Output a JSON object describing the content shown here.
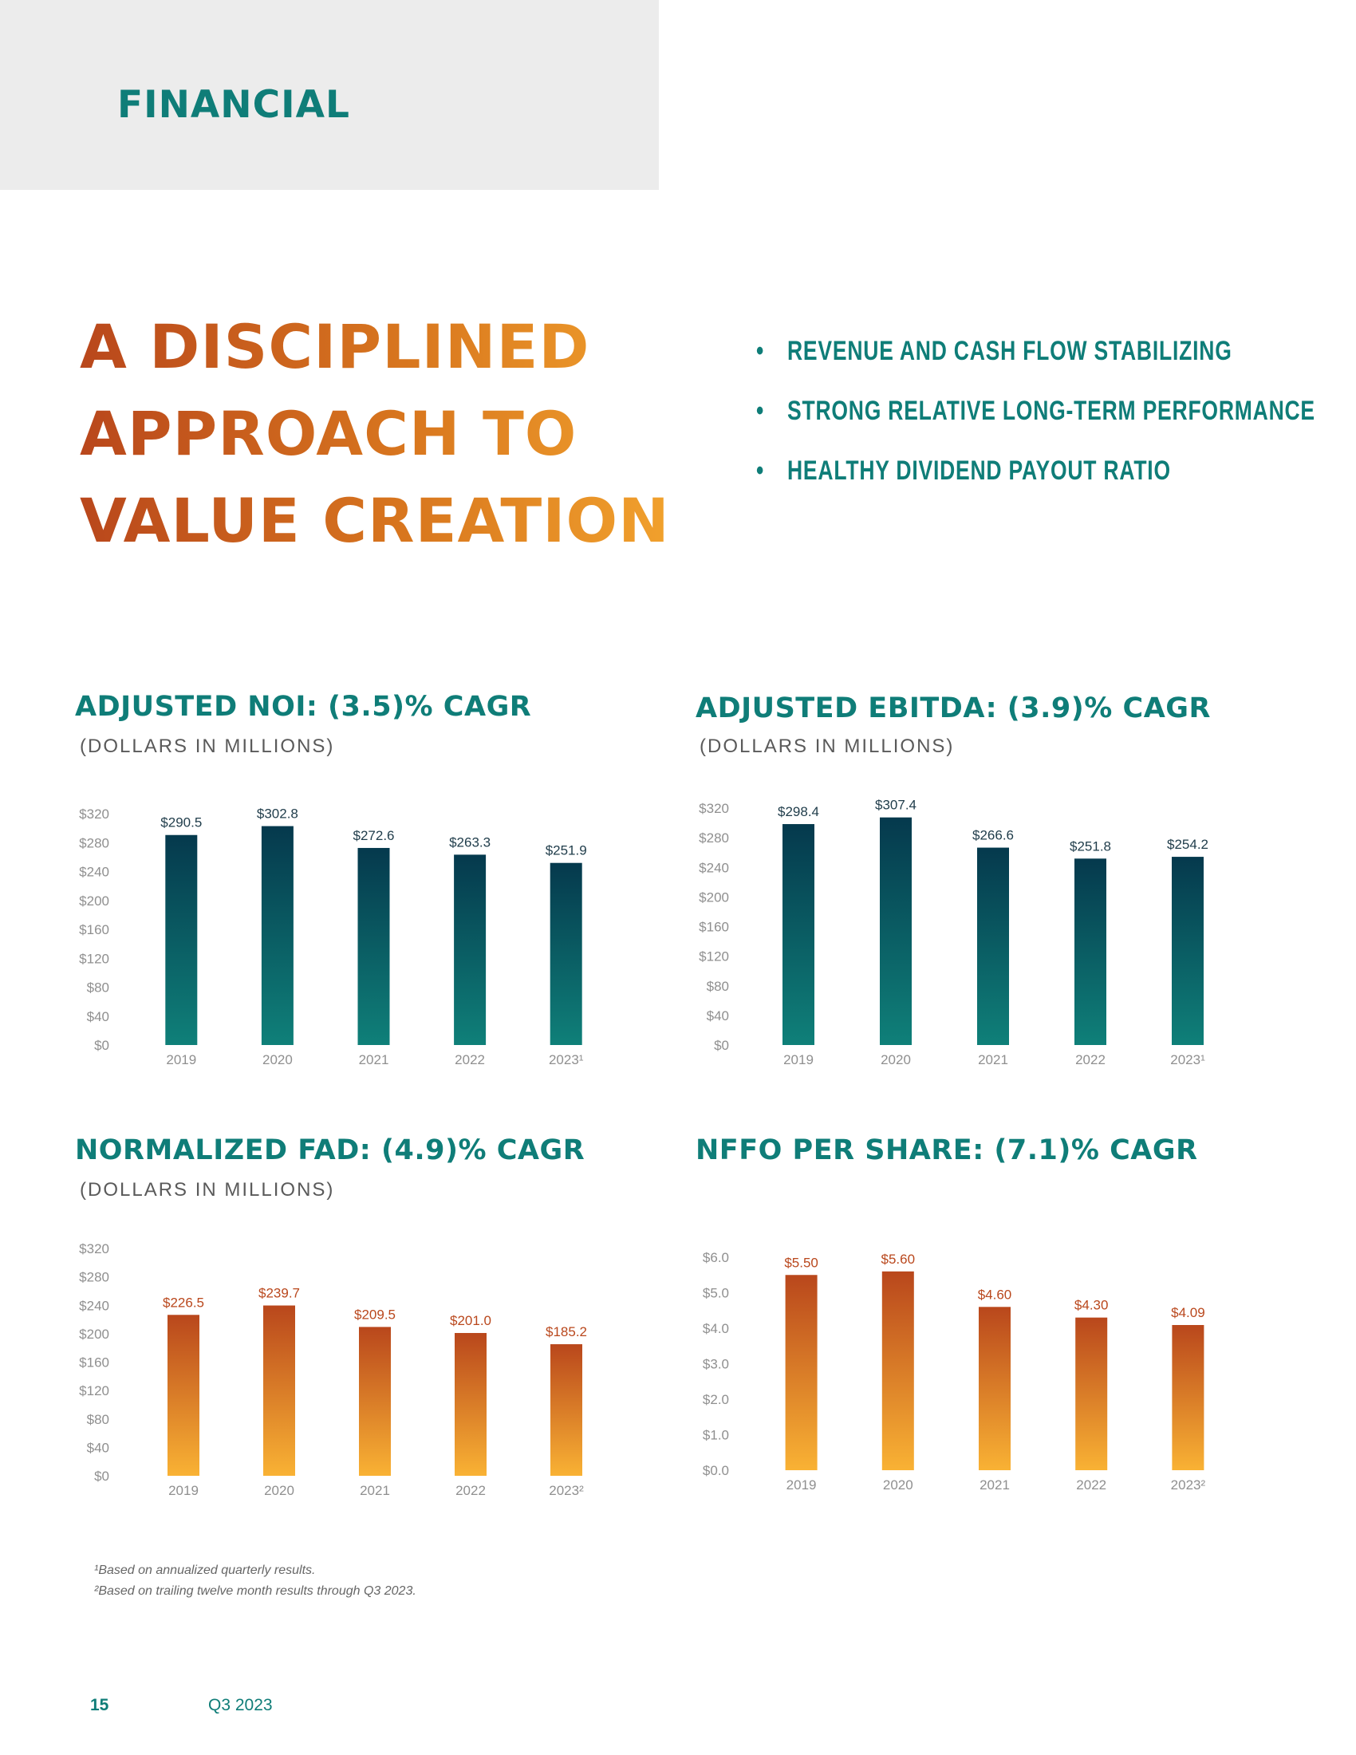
{
  "section_label": "FINANCIAL",
  "headline": [
    "A DISCIPLINED",
    "APPROACH TO",
    "VALUE CREATION"
  ],
  "bullets": [
    "REVENUE AND CASH FLOW STABILIZING",
    "STRONG RELATIVE LONG-TERM PERFORMANCE",
    "HEALTHY DIVIDEND PAYOUT RATIO"
  ],
  "colors": {
    "teal": "#0f7d78",
    "teal_dark": "#05394d",
    "teal_light": "#0f8079",
    "orange_dark": "#b9471c",
    "orange_light": "#f9b234"
  },
  "chart_data": [
    {
      "type": "bar",
      "title": "ADJUSTED NOI: (3.5)% CAGR",
      "subtitle": "(DOLLARS IN MILLIONS)",
      "categories": [
        "2019",
        "2020",
        "2021",
        "2022",
        "2023¹"
      ],
      "values": [
        290.5,
        302.8,
        272.6,
        263.3,
        251.9
      ],
      "value_labels": [
        "$290.5",
        "$302.8",
        "$272.6",
        "$263.3",
        "$251.9"
      ],
      "yticks": [
        "$0",
        "$40",
        "$80",
        "$120",
        "$160",
        "$200",
        "$240",
        "$280",
        "$320"
      ],
      "ylim": [
        0,
        320
      ],
      "palette": "teal",
      "grid": false
    },
    {
      "type": "bar",
      "title": "ADJUSTED EBITDA: (3.9)% CAGR",
      "subtitle": "(DOLLARS IN MILLIONS)",
      "categories": [
        "2019",
        "2020",
        "2021",
        "2022",
        "2023¹"
      ],
      "values": [
        298.4,
        307.4,
        266.6,
        251.8,
        254.2
      ],
      "value_labels": [
        "$298.4",
        "$307.4",
        "$266.6",
        "$251.8",
        "$254.2"
      ],
      "yticks": [
        "$0",
        "$40",
        "$80",
        "$120",
        "$160",
        "$200",
        "$240",
        "$280",
        "$320"
      ],
      "ylim": [
        0,
        320
      ],
      "palette": "teal",
      "grid": false
    },
    {
      "type": "bar",
      "title": "NORMALIZED FAD: (4.9)% CAGR",
      "subtitle": "(DOLLARS IN MILLIONS)",
      "categories": [
        "2019",
        "2020",
        "2021",
        "2022",
        "2023²"
      ],
      "values": [
        226.5,
        239.7,
        209.5,
        201.0,
        185.2
      ],
      "value_labels": [
        "$226.5",
        "$239.7",
        "$209.5",
        "$201.0",
        "$185.2"
      ],
      "yticks": [
        "$0",
        "$40",
        "$80",
        "$120",
        "$160",
        "$200",
        "$240",
        "$280",
        "$320"
      ],
      "ylim": [
        0,
        320
      ],
      "palette": "orange",
      "grid": false
    },
    {
      "type": "bar",
      "title": "NFFO PER SHARE: (7.1)% CAGR",
      "subtitle": "",
      "categories": [
        "2019",
        "2020",
        "2021",
        "2022",
        "2023²"
      ],
      "values": [
        5.5,
        5.6,
        4.6,
        4.3,
        4.09
      ],
      "value_labels": [
        "$5.50",
        "$5.60",
        "$4.60",
        "$4.30",
        "$4.09"
      ],
      "yticks": [
        "$0.0",
        "$1.0",
        "$2.0",
        "$3.0",
        "$4.0",
        "$5.0",
        "$6.0"
      ],
      "ylim": [
        0,
        6
      ],
      "palette": "orange",
      "grid": false
    }
  ],
  "footnotes": [
    "¹Based on annualized quarterly results.",
    "²Based on trailing twelve month results through Q3 2023."
  ],
  "page_number": "15",
  "period": "Q3 2023"
}
